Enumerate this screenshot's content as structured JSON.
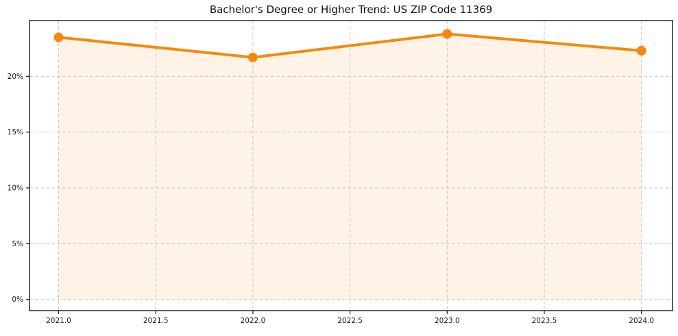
{
  "figure": {
    "background": "#ffffff"
  },
  "chart_data": {
    "type": "line",
    "title": "Bachelor's Degree or Higher Trend: US ZIP Code 11369",
    "x": [
      2021.0,
      2022.0,
      2023.0,
      2024.0
    ],
    "series": [
      {
        "name": "Bachelor's Degree or Higher %",
        "values": [
          23.5,
          21.7,
          23.8,
          22.3
        ]
      }
    ],
    "xlabel": "",
    "ylabel": "",
    "axes": {
      "xlim": [
        2020.85,
        2024.16
      ],
      "ylim": [
        -1.0,
        25.0
      ],
      "xticks": {
        "values": [
          2021.0,
          2021.5,
          2022.0,
          2022.5,
          2023.0,
          2023.5,
          2024.0
        ],
        "labels": [
          "2021.0",
          "2021.5",
          "2022.0",
          "2022.5",
          "2023.0",
          "2023.5",
          "2024.0"
        ]
      },
      "yticks": {
        "values": [
          0,
          5,
          10,
          15,
          20
        ],
        "labels": [
          "0%",
          "5%",
          "10%",
          "15%",
          "20%"
        ]
      },
      "grid": true,
      "grid_style": "dashed",
      "legend": "none",
      "area_fill": true,
      "area_baseline": 0
    },
    "style": {
      "line_color": "#f28a0d",
      "marker_color": "#f28a0d",
      "fill_color": "rgba(242,138,13,0.10)",
      "grid_color": "#cccccc",
      "spine_color": "#1a1a1a",
      "tick_color": "#1a1a1a",
      "tick_label_color": "#1a1a1a",
      "title_color": "#111111",
      "line_width": 4,
      "marker_radius": 7
    }
  }
}
